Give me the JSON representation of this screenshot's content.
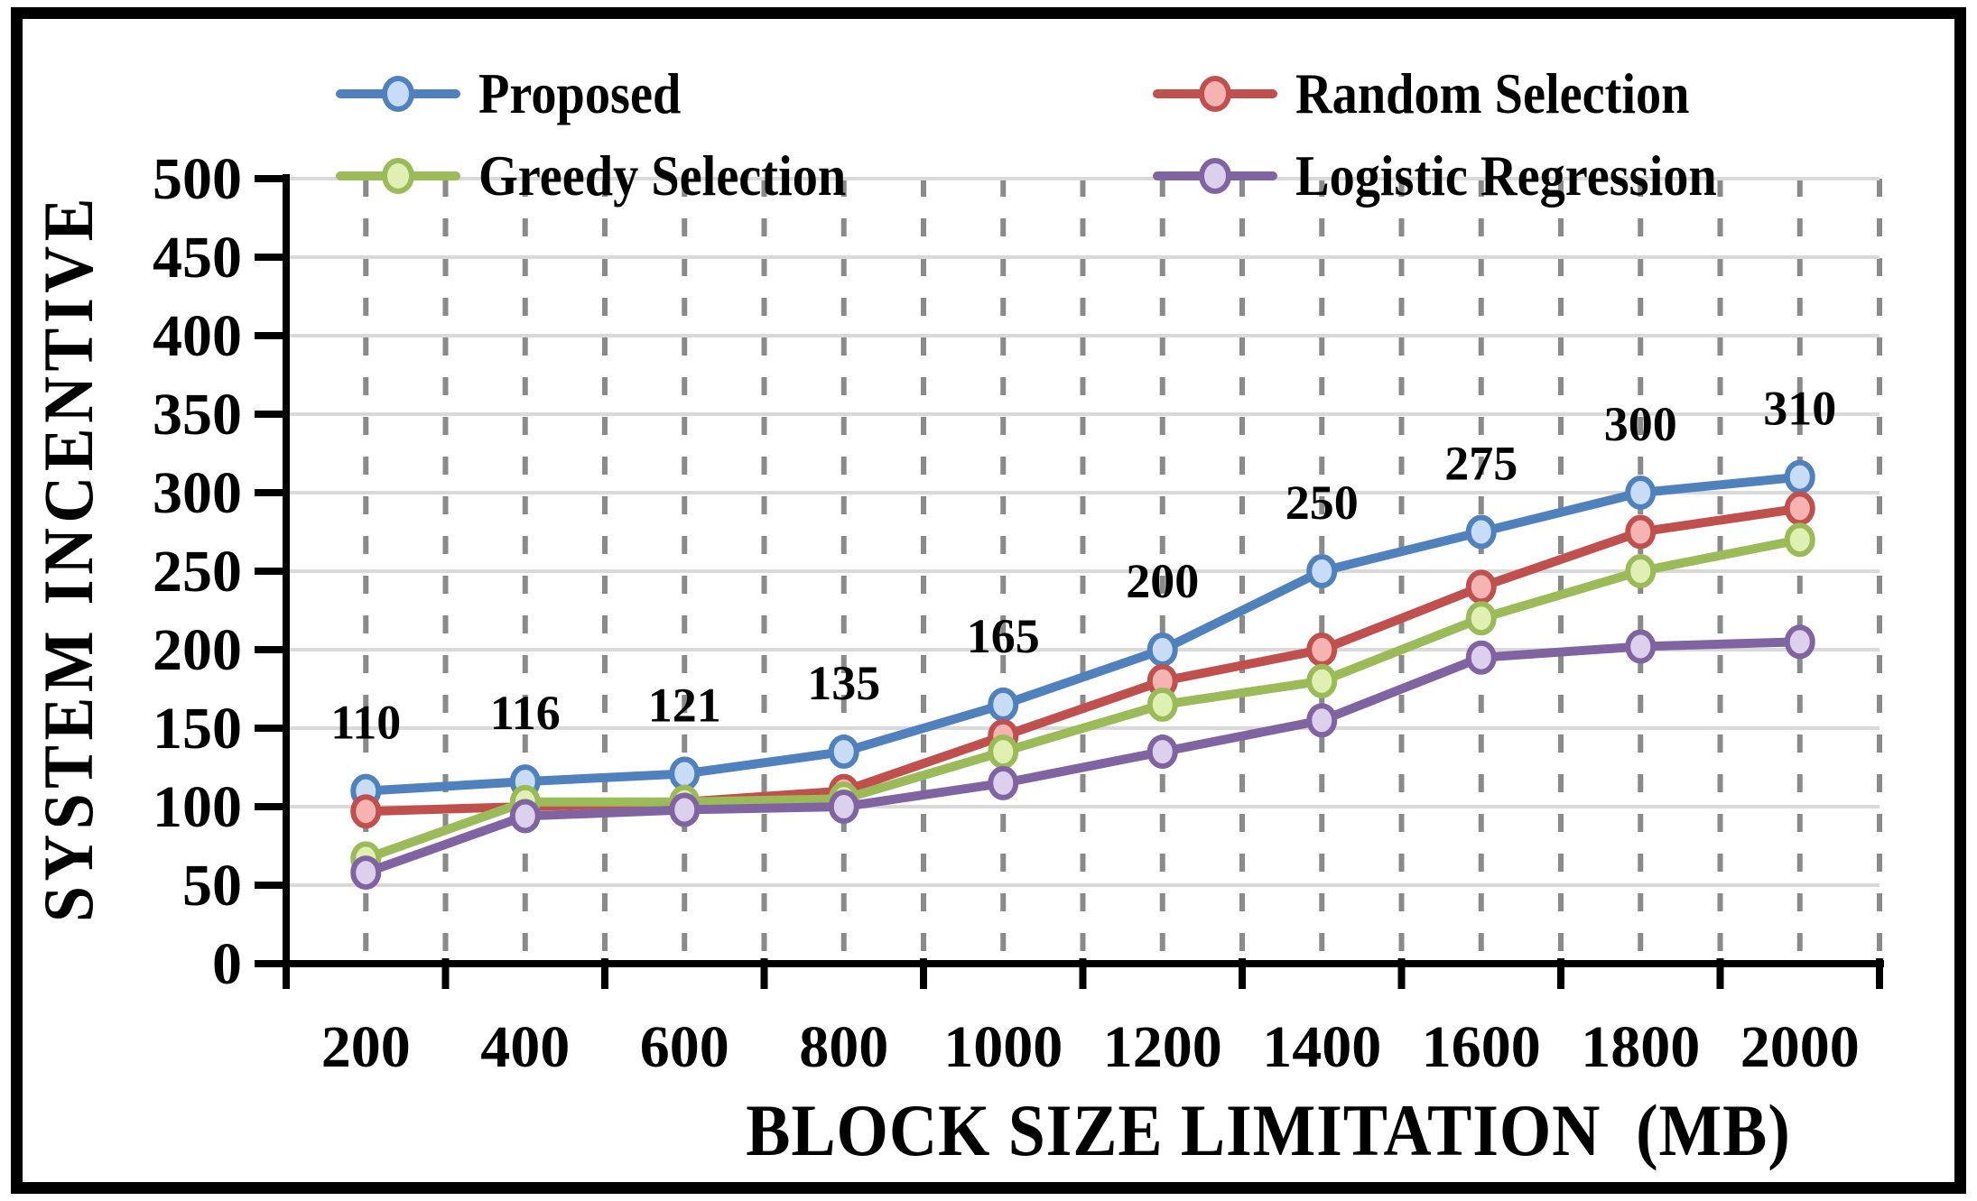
{
  "chart_data": {
    "type": "line",
    "title": "",
    "xlabel": "BLOCK SIZE LIMITATION  (MB)",
    "ylabel": "SYSTEM INCENTIVE",
    "categories": [
      200,
      400,
      600,
      800,
      1000,
      1200,
      1400,
      1600,
      1800,
      2000
    ],
    "ylim": [
      0,
      500
    ],
    "ytick_step": 50,
    "x_minor_step_mb": 100,
    "grid": {
      "horizontal": "solid",
      "vertical": "dashed"
    },
    "legend_position": "top-two-columns",
    "series": [
      {
        "name": "Proposed",
        "color": "#4F81BD",
        "marker_fill": "#C9DCF5",
        "show_labels": true,
        "values": [
          110,
          116,
          121,
          135,
          165,
          200,
          250,
          275,
          300,
          310
        ]
      },
      {
        "name": "Random Selection",
        "color": "#C0504D",
        "marker_fill": "#F5B4B1",
        "show_labels": false,
        "values": [
          97,
          100,
          103,
          110,
          145,
          180,
          200,
          240,
          275,
          290
        ]
      },
      {
        "name": "Greedy Selection",
        "color": "#9BBB59",
        "marker_fill": "#DFF0B2",
        "show_labels": false,
        "values": [
          67,
          103,
          103,
          105,
          135,
          165,
          180,
          220,
          250,
          270
        ]
      },
      {
        "name": "Logistic Regression",
        "color": "#8064A2",
        "marker_fill": "#DCD0EC",
        "show_labels": false,
        "values": [
          58,
          94,
          98,
          100,
          115,
          135,
          155,
          195,
          202,
          205
        ]
      }
    ],
    "colors": {
      "axis": "#000000",
      "h_grid": "#D9D9D9",
      "v_grid": "#8A8A8A",
      "text": "#000000",
      "background": "#FFFFFF"
    }
  }
}
